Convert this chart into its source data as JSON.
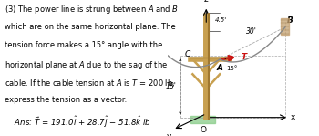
{
  "bg_color": "#ffffff",
  "text_lines": [
    "(3) The power line is strung between $A$ and $B$",
    "which are on the same horizontal plane. The",
    "tension force makes a 15° angle with the",
    "horizontal plane at $A$ due to the sag of the",
    "cable. If the cable tension at $A$ is $T$ = 200 lb,",
    "express the tension as a vector."
  ],
  "ans_line": "    $\\mathit{Ans}$: $\\vec{T}$ = 191.0$\\hat{i}$ + 28.7$\\hat{j}$ − 51.8$\\hat{k}$ lb",
  "text_fontsize": 6.0,
  "ans_fontsize": 6.2,
  "diagram": {
    "pole_color": "#c8a050",
    "pole_dark": "#a07830",
    "cable_color": "#888888",
    "arrow_color": "#cc1010",
    "ground_color": "#88cc88",
    "wall_color": "#c4a070",
    "label_18": "18'",
    "label_45": "4.5'",
    "label_30": "30'",
    "label_15": "15°",
    "label_A": "A",
    "label_B": "B",
    "label_C": "C",
    "label_O": "O",
    "label_T": "T",
    "label_z": "z",
    "label_x": "x",
    "label_y": "y"
  }
}
